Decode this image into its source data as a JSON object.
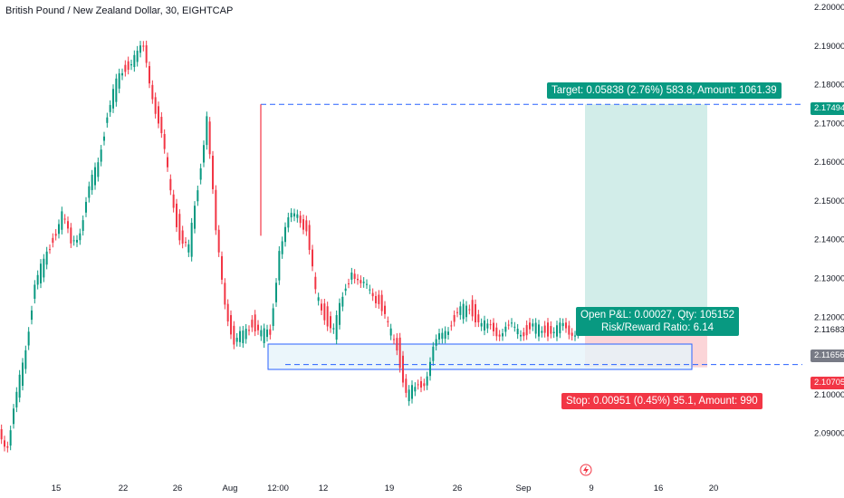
{
  "header": {
    "title": "British Pound / New Zealand Dollar, 30, EIGHTCAP"
  },
  "chart_data": {
    "type": "line",
    "y_ticks": [
      "2.20000",
      "2.19000",
      "2.18000",
      "2.17000",
      "2.16000",
      "2.15000",
      "2.14000",
      "2.13000",
      "2.12000",
      "2.11683",
      "2.11000",
      "2.10000",
      "2.09000"
    ],
    "x_ticks": [
      "15",
      "22",
      "26",
      "Aug",
      "12:00",
      "12",
      "19",
      "26",
      "Sep",
      "9",
      "16",
      "20"
    ],
    "ylim": [
      2.085,
      2.2
    ],
    "price_series": {
      "x": [
        0,
        2,
        4,
        6,
        8,
        10,
        12,
        14,
        16,
        18,
        20,
        22,
        24,
        26,
        28,
        30,
        32,
        34,
        36,
        38,
        40,
        42,
        44,
        46,
        48,
        50,
        52,
        54,
        56,
        58,
        60,
        62,
        64,
        66,
        68,
        70,
        72,
        74,
        76,
        78,
        80,
        82,
        84,
        86,
        88,
        90,
        92,
        94,
        96,
        98,
        100,
        102,
        104,
        106,
        108,
        110,
        112,
        114,
        116,
        118,
        120,
        122,
        124,
        126,
        128,
        130
      ],
      "y": [
        2.091,
        2.087,
        2.099,
        2.113,
        2.128,
        2.134,
        2.141,
        2.146,
        2.139,
        2.143,
        2.152,
        2.161,
        2.172,
        2.18,
        2.185,
        2.187,
        2.189,
        2.178,
        2.166,
        2.153,
        2.141,
        2.137,
        2.154,
        2.172,
        2.141,
        2.125,
        2.112,
        2.116,
        2.119,
        2.115,
        2.116,
        2.138,
        2.144,
        2.148,
        2.142,
        2.126,
        2.121,
        2.116,
        2.125,
        2.133,
        2.127,
        2.128,
        2.124,
        2.117,
        2.113,
        2.1,
        2.101,
        2.104,
        2.111,
        2.116,
        2.119,
        2.121,
        2.123,
        2.119,
        2.1168,
        2.1168,
        2.1168,
        2.1168,
        2.1168,
        2.1168,
        2.1168,
        2.1168,
        2.1168,
        2.1168,
        2.1168,
        2.1168
      ]
    },
    "position": {
      "entry": 2.11656,
      "target": 2.17494,
      "stop": 2.10705,
      "current": 2.11683
    }
  },
  "labels": {
    "target_text": "Target: 0.05838 (2.76%) 583.8, Amount: 1061.39",
    "stop_text": "Stop: 0.00951 (0.45%) 95.1, Amount: 990",
    "pnl_line1": "Open P&L: 0.00027, Qty: 105152",
    "pnl_line2": "Risk/Reward Ratio: 6.14",
    "price_target_tag": "2.17494",
    "price_entry_tag": "2.11656",
    "price_stop_tag": "2.10705"
  },
  "colors": {
    "up": "#089981",
    "down": "#f23645",
    "target_zone": "#d2ede9",
    "stop_zone": "#fbd5d8",
    "box_blue": "#2962ff",
    "box_fill": "#e6f4fa"
  },
  "icons": {
    "event_icon": "lightning-icon"
  }
}
